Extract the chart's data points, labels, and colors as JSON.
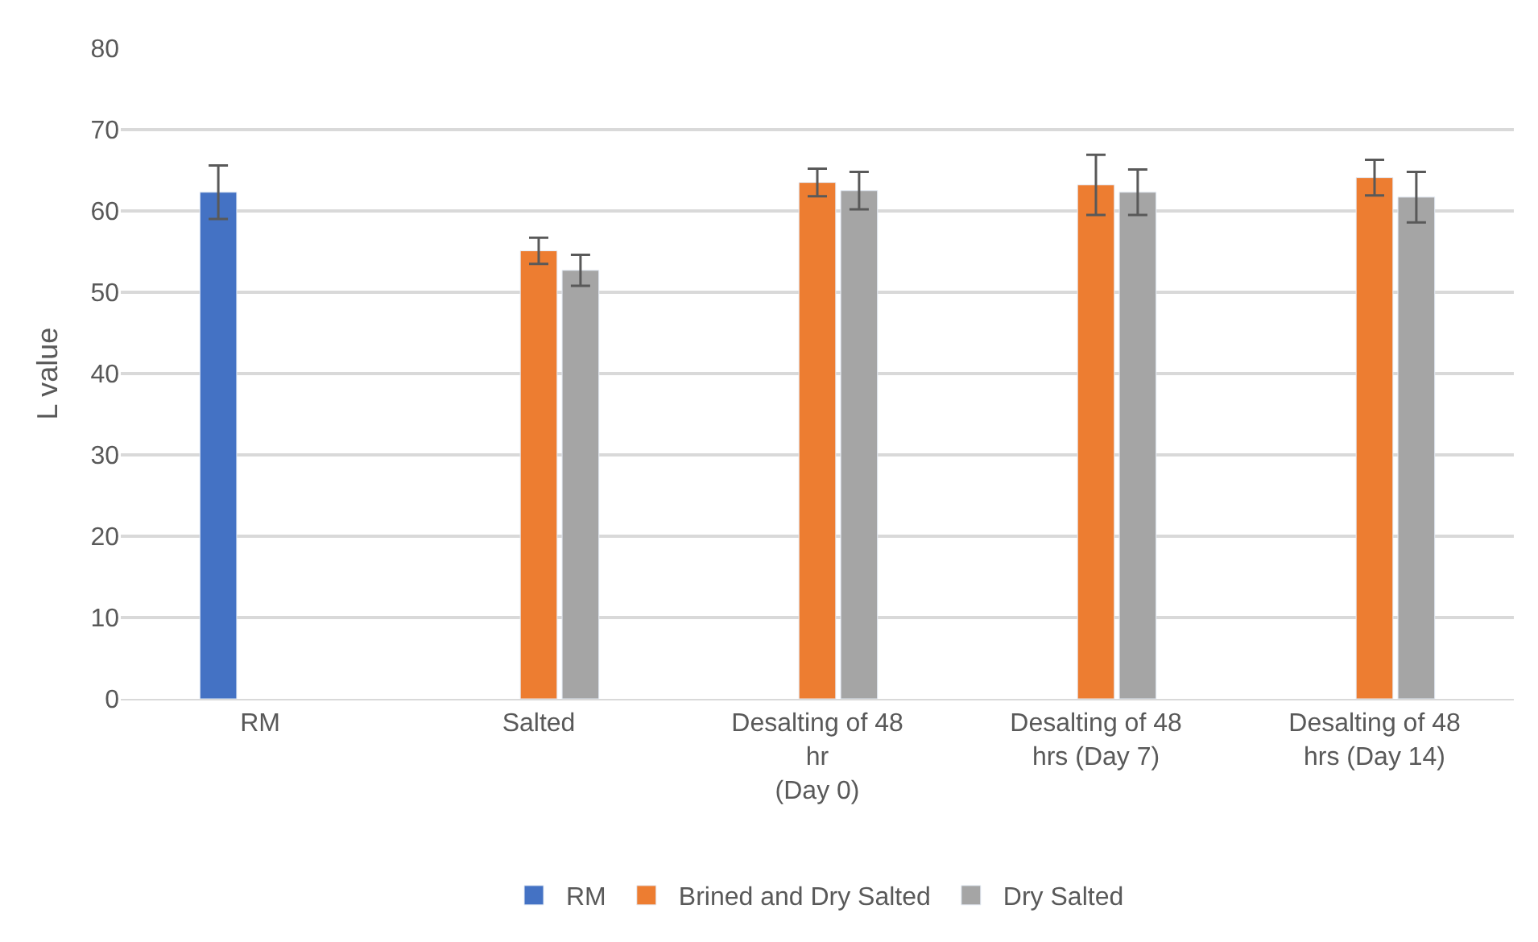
{
  "chart_data": {
    "type": "bar",
    "ylabel": "L value",
    "categories": [
      "RM",
      "Salted",
      "Desalting of 48 hr\n(Day 0)",
      "Desalting of 48 hrs (Day 7)",
      "Desalting of 48 hrs (Day 14)"
    ],
    "series": [
      {
        "name": "RM",
        "color": "#4472c4",
        "values": [
          62.3,
          null,
          null,
          null,
          null
        ],
        "errors": [
          3.3,
          null,
          null,
          null,
          null
        ]
      },
      {
        "name": "Brined and Dry Salted",
        "color": "#ed7d31",
        "values": [
          null,
          55.1,
          63.5,
          63.2,
          64.1
        ],
        "errors": [
          null,
          1.6,
          1.7,
          3.7,
          2.2
        ]
      },
      {
        "name": "Dry Salted",
        "color": "#a5a5a5",
        "values": [
          null,
          52.7,
          62.5,
          62.3,
          61.7
        ],
        "errors": [
          null,
          1.9,
          2.3,
          2.8,
          3.1
        ]
      }
    ],
    "ylim": [
      0,
      80
    ],
    "yticks": [
      0,
      10,
      20,
      30,
      40,
      50,
      60,
      70,
      80
    ],
    "grid": "y",
    "legend": "bottom"
  }
}
